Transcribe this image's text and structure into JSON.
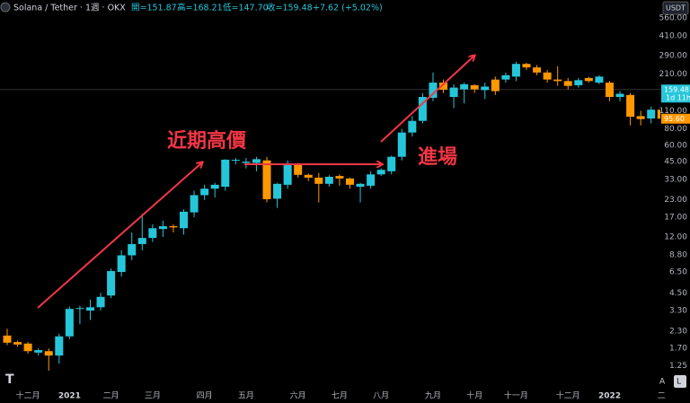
{
  "header": {
    "symbol": "Solana / Tether · 1週 · OKX",
    "stats": [
      "開=151.87",
      "高=168.21",
      "低=147.70",
      "收=159.48",
      "+7.62 (+5.02%)"
    ]
  },
  "currency": "USDT",
  "buttons": [
    "A",
    "L"
  ],
  "chart_data": {
    "type": "candlestick",
    "log": true,
    "grid": false,
    "up_color": "#26c6da",
    "down_color": "#ff9800",
    "annotations": [
      "近期高價",
      "進場"
    ],
    "categories": [
      null,
      null,
      "十二月",
      null,
      null,
      null,
      "2021",
      null,
      null,
      null,
      "二月",
      null,
      null,
      null,
      "三月",
      null,
      null,
      null,
      null,
      "四月",
      null,
      null,
      null,
      "五月",
      null,
      null,
      null,
      null,
      "六月",
      null,
      null,
      null,
      "七月",
      null,
      null,
      null,
      "八月",
      null,
      null,
      null,
      null,
      "九月",
      null,
      null,
      null,
      "十月",
      null,
      null,
      null,
      "十一月",
      null,
      null,
      null,
      null,
      "十二月",
      null,
      null,
      null,
      "2022",
      null,
      null,
      null,
      null,
      "二"
    ],
    "open": [
      2.13,
      1.9,
      1.85,
      1.58,
      1.62,
      1.5,
      2.1,
      3.4,
      3.3,
      3.5,
      4.3,
      6.5,
      8.7,
      10.6,
      11.8,
      13.8,
      14.5,
      14,
      18.5,
      25,
      28,
      29,
      46,
      44,
      44,
      46,
      23.5,
      30,
      43,
      35.7,
      34,
      30.5,
      35,
      33.5,
      29,
      29.5,
      36,
      38,
      49,
      75,
      92,
      138,
      180,
      140,
      160,
      172,
      158,
      190,
      190,
      200,
      250,
      235,
      215,
      190,
      185,
      172,
      195,
      180,
      180,
      140,
      145,
      100,
      96,
      112
    ],
    "high": [
      2.4,
      1.95,
      1.9,
      1.7,
      1.7,
      2.2,
      3.55,
      3.6,
      4.0,
      4.5,
      6.9,
      9.5,
      13,
      18,
      15,
      16,
      15,
      19.5,
      27,
      30,
      31,
      47,
      48,
      48,
      49,
      49,
      31,
      46,
      44,
      36.5,
      37,
      35.5,
      36,
      34,
      31,
      38,
      40,
      50,
      80,
      100,
      150,
      215,
      190,
      175,
      180,
      175,
      180,
      200,
      215,
      260,
      255,
      245,
      225,
      240,
      195,
      195,
      200,
      205,
      185,
      155,
      150,
      110,
      118,
      115
    ],
    "low": [
      1.8,
      1.75,
      1.55,
      1.5,
      1.15,
      1.3,
      2.0,
      2.6,
      2.8,
      3.3,
      4.1,
      6,
      8,
      9.5,
      11,
      12,
      13,
      12.5,
      17,
      23,
      24,
      27,
      43,
      40,
      38,
      22,
      20,
      28,
      34,
      32,
      22,
      29,
      29.5,
      28,
      22,
      28,
      35,
      36,
      46,
      70,
      88,
      130,
      150,
      115,
      125,
      150,
      135,
      145,
      180,
      185,
      225,
      205,
      180,
      170,
      160,
      165,
      180,
      175,
      130,
      130,
      85,
      85,
      88,
      92
    ],
    "close": [
      1.88,
      1.82,
      1.62,
      1.65,
      1.5,
      2.1,
      3.4,
      3.45,
      3.5,
      4.2,
      6.6,
      8.7,
      10.6,
      11.8,
      14,
      14.5,
      14.2,
      18.7,
      25,
      28,
      30,
      46.6,
      46.5,
      45,
      47,
      23.3,
      30.5,
      43,
      35.7,
      34,
      30.5,
      34.5,
      33.5,
      30,
      30.5,
      36,
      39,
      49,
      75,
      92,
      140,
      180,
      159,
      165,
      175,
      160,
      168,
      155,
      205,
      250,
      235,
      215,
      190,
      185,
      170,
      188,
      185,
      200,
      140,
      148,
      99,
      95,
      112,
      95.6
    ],
    "ylim": [
      0.88,
      767
    ],
    "yticks": [
      {
        "value": 560,
        "label": "560.00"
      },
      {
        "value": 410,
        "label": "410.00"
      },
      {
        "value": 290,
        "label": "290.00"
      },
      {
        "value": 210,
        "label": "210.00"
      },
      {
        "value": 110,
        "label": "110.00"
      },
      {
        "value": 80,
        "label": "80.00"
      },
      {
        "value": 60,
        "label": "60.00"
      },
      {
        "value": 45,
        "label": "45.00"
      },
      {
        "value": 33,
        "label": "33.00"
      },
      {
        "value": 23,
        "label": "23.00"
      },
      {
        "value": 17,
        "label": "17.00"
      },
      {
        "value": 12,
        "label": "12.00"
      },
      {
        "value": 8.8,
        "label": "8.80"
      },
      {
        "value": 6.5,
        "label": "6.50"
      },
      {
        "value": 4.5,
        "label": "4.50"
      },
      {
        "value": 3.3,
        "label": "3.30"
      },
      {
        "value": 2.3,
        "label": "2.30"
      },
      {
        "value": 1.7,
        "label": "1.70"
      },
      {
        "value": 1.25,
        "label": "1.25"
      }
    ],
    "price_labels": [
      {
        "value": 159.48,
        "label": "159.48",
        "sub": "1d 11h",
        "color": "#26c6da"
      },
      {
        "value": 95.6,
        "label": "95.60",
        "color": "#ff9800"
      }
    ]
  }
}
